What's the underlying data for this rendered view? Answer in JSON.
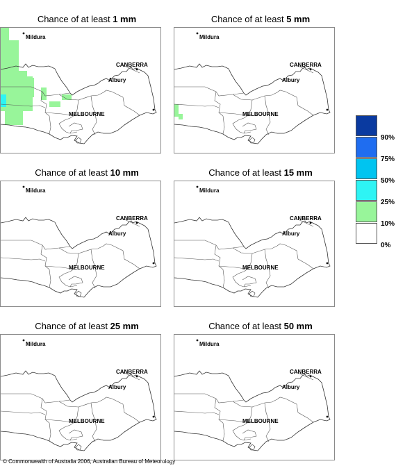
{
  "panels": [
    {
      "title_prefix": "Chance of at least ",
      "amount": "1 mm"
    },
    {
      "title_prefix": "Chance of at least ",
      "amount": "5 mm"
    },
    {
      "title_prefix": "Chance of at least ",
      "amount": "10 mm"
    },
    {
      "title_prefix": "Chance of at least ",
      "amount": "15 mm"
    },
    {
      "title_prefix": "Chance of at least ",
      "amount": "25 mm"
    },
    {
      "title_prefix": "Chance of at least ",
      "amount": "50 mm"
    }
  ],
  "places": {
    "mildura": "Mildura",
    "canberra": "CANBERRA",
    "albury": "Albury",
    "melbourne": "MELBOURNE"
  },
  "legend": {
    "labels": [
      "90%",
      "75%",
      "50%",
      "25%",
      "10%",
      "0%"
    ],
    "colors": [
      "#0a3aa0",
      "#1f6df0",
      "#00c4f0",
      "#2ef4f4",
      "#98f59a",
      "#ffffff"
    ]
  },
  "copyright": "© Commonwealth of Australia 2006, Australian Bureau of Meteorology"
}
